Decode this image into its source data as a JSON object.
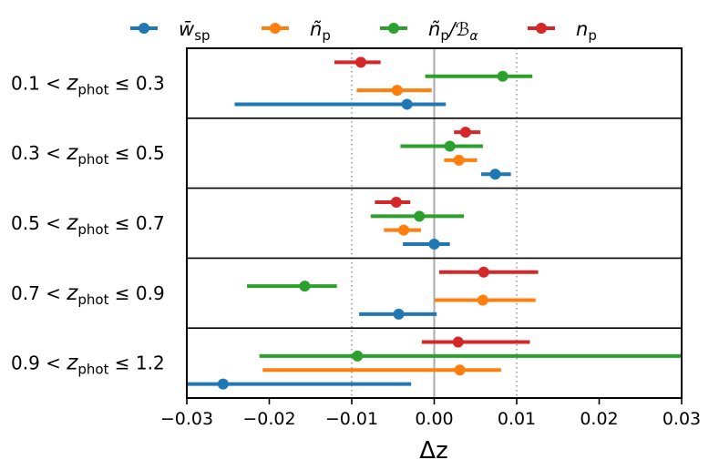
{
  "chart_data": {
    "type": "errorbar",
    "xlabel": "Δz",
    "xlim": [
      -0.03,
      0.03
    ],
    "xticks": [
      -0.03,
      -0.02,
      -0.01,
      0.0,
      0.01,
      0.02,
      0.03
    ],
    "xtick_labels": [
      "−0.03",
      "−0.02",
      "−0.01",
      "0.00",
      "0.01",
      "0.02",
      "0.03"
    ],
    "reference_lines": {
      "solid": 0.0,
      "dotted": [
        -0.01,
        0.01
      ]
    },
    "legend": [
      {
        "key": "wsp",
        "base": "w",
        "accent": "̄",
        "sub": "sp",
        "color": "#1f77b4"
      },
      {
        "key": "np",
        "base": "n",
        "accent": "̃",
        "sub": "p",
        "color": "#ff7f0e"
      },
      {
        "key": "npB",
        "base": "n",
        "accent": "̃",
        "sub": "p",
        "suffix": "/ℬ",
        "suffix_sub": "α",
        "color": "#2ca02c"
      },
      {
        "key": "nprel",
        "base": "n",
        "accent": "",
        "sub": "p",
        "color": "#d62728"
      }
    ],
    "rows": [
      {
        "lo": "0.1",
        "hi": "0.3",
        "series": [
          {
            "key": "nprel",
            "value": -0.0089,
            "low": -0.0121,
            "high": -0.0065
          },
          {
            "key": "npB",
            "value": 0.0083,
            "low": -0.0011,
            "high": 0.0119
          },
          {
            "key": "np",
            "value": -0.0045,
            "low": -0.0094,
            "high": -0.0003
          },
          {
            "key": "wsp",
            "value": -0.0033,
            "low": -0.0242,
            "high": 0.0014
          }
        ]
      },
      {
        "lo": "0.3",
        "hi": "0.5",
        "series": [
          {
            "key": "nprel",
            "value": 0.0038,
            "low": 0.0024,
            "high": 0.0056
          },
          {
            "key": "npB",
            "value": 0.0019,
            "low": -0.0041,
            "high": 0.0059
          },
          {
            "key": "np",
            "value": 0.003,
            "low": 0.0012,
            "high": 0.0052
          },
          {
            "key": "wsp",
            "value": 0.0074,
            "low": 0.0057,
            "high": 0.0093
          }
        ]
      },
      {
        "lo": "0.5",
        "hi": "0.7",
        "series": [
          {
            "key": "nprel",
            "value": -0.0046,
            "low": -0.0072,
            "high": -0.0029
          },
          {
            "key": "npB",
            "value": -0.0018,
            "low": -0.0077,
            "high": 0.0036
          },
          {
            "key": "np",
            "value": -0.0037,
            "low": -0.0061,
            "high": -0.0016
          },
          {
            "key": "wsp",
            "value": 0.0,
            "low": -0.0038,
            "high": 0.0019
          }
        ]
      },
      {
        "lo": "0.7",
        "hi": "0.9",
        "series": [
          {
            "key": "nprel",
            "value": 0.006,
            "low": 0.0006,
            "high": 0.0126
          },
          {
            "key": "npB",
            "value": -0.0157,
            "low": -0.0227,
            "high": -0.0118
          },
          {
            "key": "np",
            "value": 0.0059,
            "low": 0.0001,
            "high": 0.0123
          },
          {
            "key": "wsp",
            "value": -0.0043,
            "low": -0.0091,
            "high": 0.0003
          }
        ]
      },
      {
        "lo": "0.9",
        "hi": "1.2",
        "series": [
          {
            "key": "nprel",
            "value": 0.0029,
            "low": -0.0015,
            "high": 0.0116
          },
          {
            "key": "npB",
            "value": -0.0093,
            "low": -0.0212,
            "high": 0.03
          },
          {
            "key": "np",
            "value": 0.0031,
            "low": -0.0208,
            "high": 0.0081
          },
          {
            "key": "wsp",
            "value": -0.0256,
            "low": -0.03,
            "high": -0.0028
          }
        ]
      }
    ],
    "row_label_var": "z",
    "row_label_sub": "phot"
  }
}
